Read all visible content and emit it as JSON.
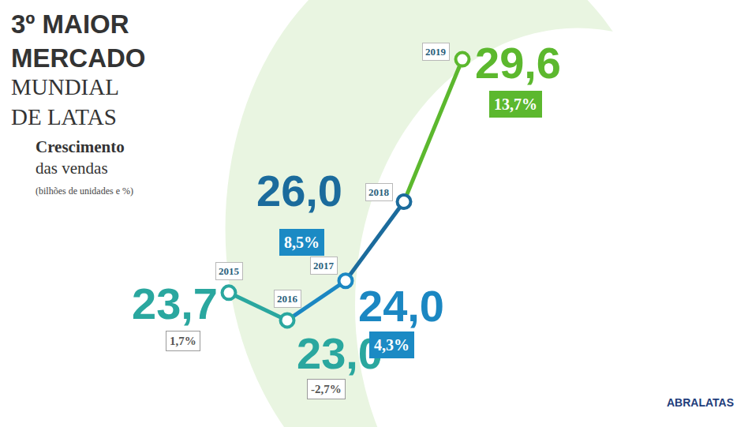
{
  "chart_data": {
    "type": "line",
    "title": "3º MAIOR MERCADO MUNDIAL DE LATAS",
    "subtitle": "Crescimento das vendas",
    "unit_label": "(bilhões de unidades e %)",
    "source": "ABRALATAS",
    "categories": [
      "2015",
      "2016",
      "2017",
      "2018",
      "2019"
    ],
    "values": [
      23.7,
      23.0,
      24.0,
      26.0,
      29.6
    ],
    "value_labels": [
      "23,7",
      "23,0",
      "24,0",
      "26,0",
      "29,6"
    ],
    "colors": [
      "#2aa79f",
      "#2aa79f",
      "#1b87c2",
      "#1b6b9c",
      "#5cb82e"
    ],
    "growth": {
      "values": [
        1.7,
        -2.7,
        4.3,
        8.5,
        13.7
      ],
      "value_labels": [
        "1,7%",
        "-2,7%",
        "4,3%",
        "8,5%",
        "13,7%"
      ],
      "colors": [
        "#ffffff",
        "#ffffff",
        "#1b8ac4",
        "#1b8ac4",
        "#5cb82e"
      ]
    },
    "ylim": [
      22.2,
      30
    ],
    "grid": false,
    "tick_labels": false,
    "data_labels": true,
    "marker": "circle"
  }
}
